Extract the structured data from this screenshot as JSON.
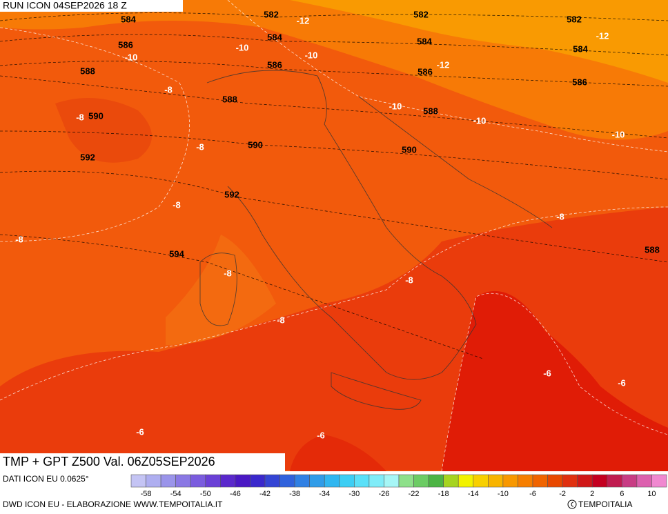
{
  "header": {
    "run": "RUN ICON 04SEP2026 18 Z"
  },
  "map": {
    "title": "TMP + GPT Z500 Val. 06Z05SEP2026",
    "gpt_labels": [
      582,
      582,
      582,
      584,
      584,
      584,
      584,
      586,
      586,
      586,
      586,
      588,
      588,
      588,
      588,
      590,
      590,
      590,
      592,
      592,
      594
    ],
    "tmp_labels": [
      -12,
      -12,
      -12,
      -10,
      -10,
      -10,
      -10,
      -10,
      -10,
      -8,
      -8,
      -8,
      -8,
      -8,
      -8,
      -8,
      -8,
      -8,
      -6,
      -6,
      -6,
      -6
    ]
  },
  "footer": {
    "source": "DATI ICON EU 0.0625°",
    "credit": "DWD ICON EU - ELABORAZIONE WWW.TEMPOITALIA.IT",
    "copyright": "TEMPOITALIA",
    "colorbar": {
      "colors": [
        "#c4c4f4",
        "#aeaef0",
        "#9a94ea",
        "#8a78e4",
        "#7a5cde",
        "#6a40d6",
        "#5a28cc",
        "#4a18c4",
        "#3a28cc",
        "#3444d4",
        "#3062dc",
        "#3080e4",
        "#309ce8",
        "#30b6f0",
        "#3ccef4",
        "#5ae0f8",
        "#80ecf8",
        "#a6f6f6",
        "#8ee08a",
        "#6ccc64",
        "#4cb444",
        "#a6d420",
        "#f2f200",
        "#f8d000",
        "#f8b400",
        "#f89800",
        "#f67e00",
        "#f06400",
        "#e84800",
        "#e03010",
        "#d01818",
        "#c40020",
        "#c01c50",
        "#c83c84",
        "#dc60ae",
        "#f088d0"
      ],
      "ticks": [
        -58,
        -54,
        -50,
        -46,
        -42,
        -38,
        -34,
        -30,
        -26,
        -22,
        -18,
        -14,
        -10,
        -6,
        -2,
        2,
        6,
        10
      ]
    }
  }
}
